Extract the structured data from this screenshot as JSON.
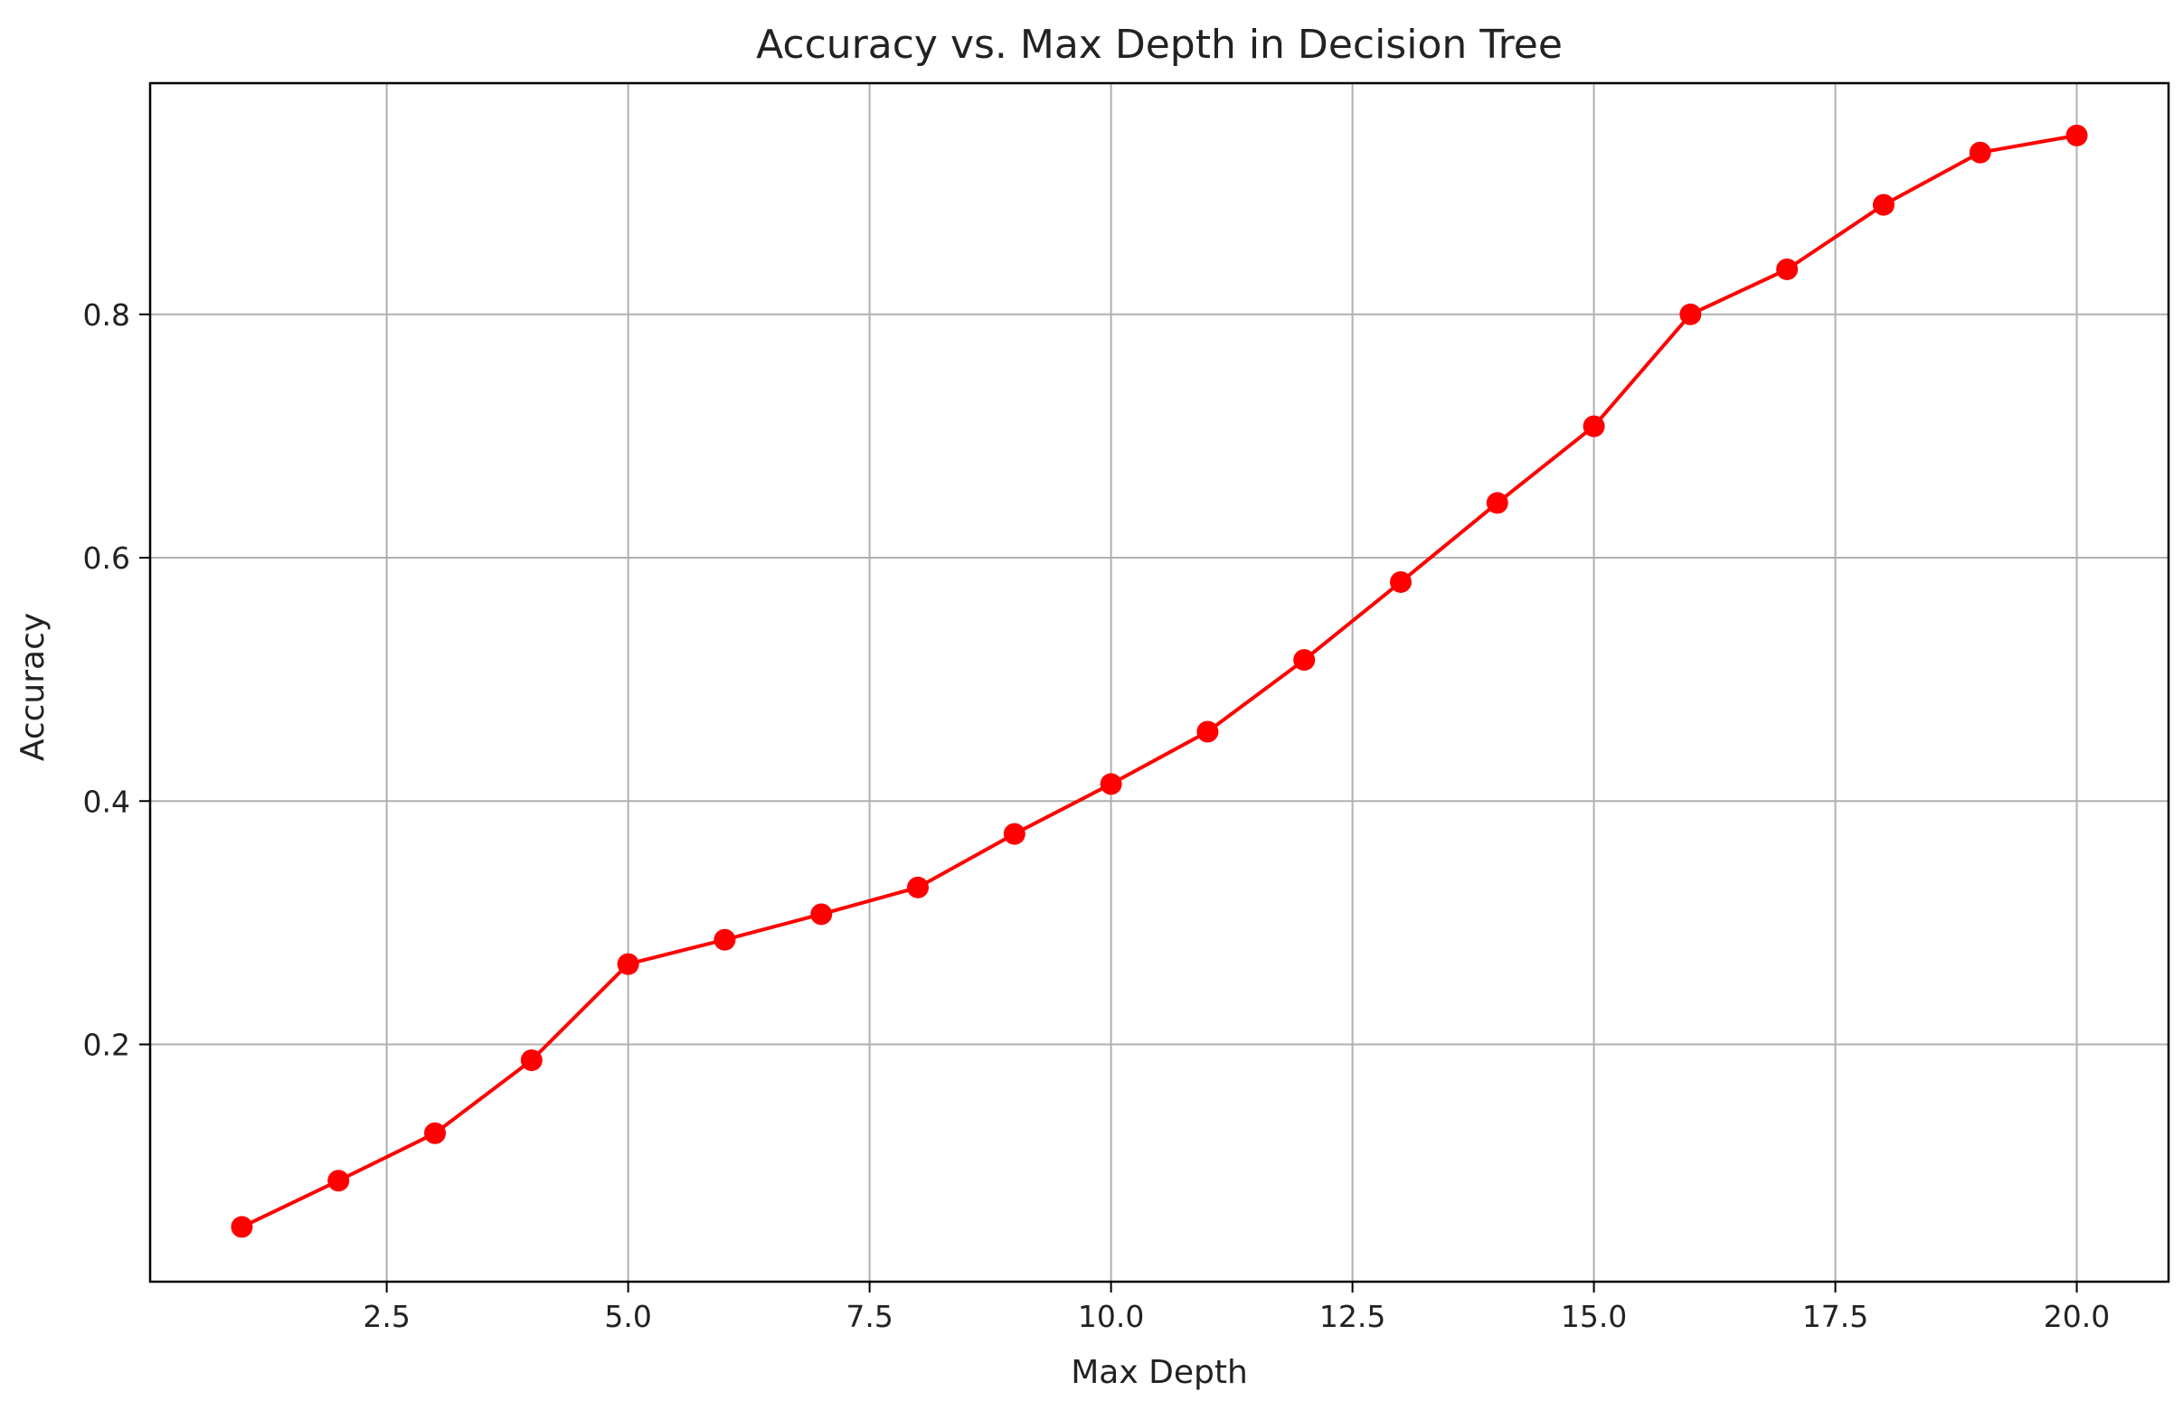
{
  "chart_data": {
    "type": "line",
    "title": "Accuracy vs. Max Depth in Decision Tree",
    "xlabel": "Max Depth",
    "ylabel": "Accuracy",
    "xlim": [
      0.05,
      20.95
    ],
    "ylim": [
      0.005,
      0.99
    ],
    "xticks": [
      2.5,
      5.0,
      7.5,
      10.0,
      12.5,
      15.0,
      17.5,
      20.0
    ],
    "xtick_labels": [
      "2.5",
      "5.0",
      "7.5",
      "10.0",
      "12.5",
      "15.0",
      "17.5",
      "20.0"
    ],
    "yticks": [
      0.2,
      0.4,
      0.6,
      0.8
    ],
    "ytick_labels": [
      "0.2",
      "0.4",
      "0.6",
      "0.8"
    ],
    "grid": true,
    "series": [
      {
        "color": "#ff0000",
        "marker": "circle",
        "x": [
          1,
          2,
          3,
          4,
          5,
          6,
          7,
          8,
          9,
          10,
          11,
          12,
          13,
          14,
          15,
          16,
          17,
          18,
          19,
          20
        ],
        "y": [
          0.05,
          0.088,
          0.127,
          0.187,
          0.266,
          0.286,
          0.307,
          0.329,
          0.373,
          0.414,
          0.457,
          0.516,
          0.58,
          0.645,
          0.708,
          0.8,
          0.837,
          0.89,
          0.933,
          0.947
        ]
      }
    ]
  }
}
